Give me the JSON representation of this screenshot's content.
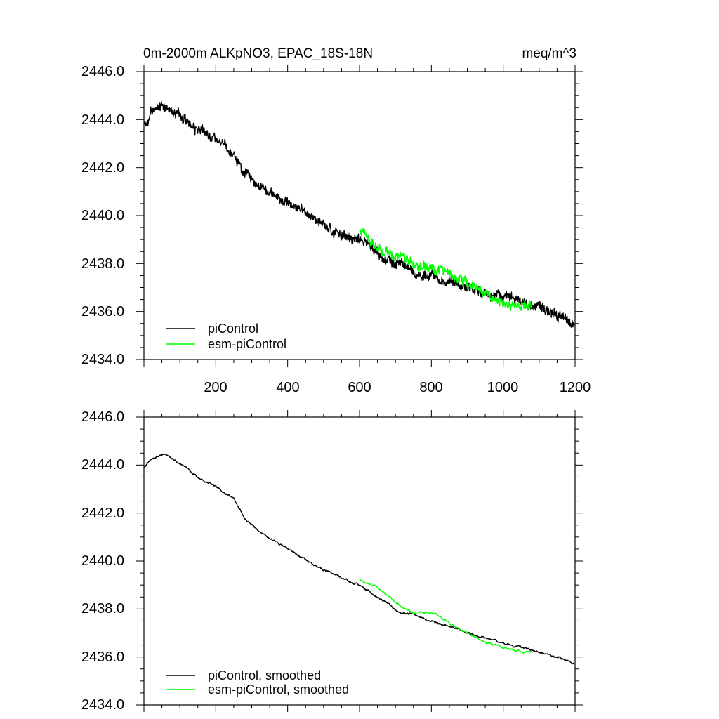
{
  "chart_data": [
    {
      "type": "line",
      "title_left": "0m-2000m ALKpNO3, EPAC_18S-18N",
      "title_right": "meq/m^3",
      "xlim": [
        0,
        1200
      ],
      "ylim": [
        2434.0,
        2446.0
      ],
      "yticks": [
        "2434.0",
        "2436.0",
        "2438.0",
        "2440.0",
        "2442.0",
        "2444.0",
        "2446.0"
      ],
      "xticks": [
        "200",
        "400",
        "600",
        "800",
        "1000",
        "1200"
      ],
      "series": [
        {
          "name": "piControl",
          "color": "#000000",
          "x_range": [
            1,
            1200
          ],
          "anchors_x": [
            1,
            20,
            60,
            80,
            110,
            150,
            200,
            250,
            280,
            320,
            400,
            500,
            600,
            700,
            800,
            900,
            1000,
            1100,
            1200
          ],
          "anchors_y": [
            2443.7,
            2444.3,
            2444.6,
            2444.4,
            2444.1,
            2443.6,
            2443.1,
            2442.6,
            2441.8,
            2441.2,
            2440.5,
            2439.6,
            2439.0,
            2438.0,
            2437.5,
            2437.0,
            2436.6,
            2436.2,
            2435.6
          ],
          "noise": 0.28
        },
        {
          "name": "esm-piControl",
          "color": "#00ff00",
          "x_range": [
            600,
            1080
          ],
          "anchors_x": [
            600,
            650,
            700,
            750,
            800,
            850,
            900,
            950,
            1000,
            1050,
            1080
          ],
          "anchors_y": [
            2439.3,
            2438.7,
            2438.4,
            2437.9,
            2437.9,
            2437.6,
            2437.2,
            2436.7,
            2436.4,
            2436.2,
            2436.3
          ],
          "noise": 0.28
        }
      ]
    },
    {
      "type": "line",
      "xlim": [
        0,
        1200
      ],
      "ylim": [
        2434.0,
        2446.0
      ],
      "yticks": [
        "2434.0",
        "2436.0",
        "2438.0",
        "2440.0",
        "2442.0",
        "2444.0",
        "2446.0"
      ],
      "series": [
        {
          "name": "piControl, smoothed",
          "color": "#000000",
          "x_range": [
            1,
            1200
          ],
          "anchors_x": [
            1,
            20,
            60,
            80,
            110,
            150,
            200,
            250,
            280,
            320,
            400,
            500,
            600,
            700,
            800,
            900,
            1000,
            1100,
            1200
          ],
          "anchors_y": [
            2443.9,
            2444.3,
            2444.5,
            2444.3,
            2444.0,
            2443.5,
            2443.1,
            2442.6,
            2441.8,
            2441.2,
            2440.5,
            2439.6,
            2439.0,
            2438.0,
            2437.5,
            2437.0,
            2436.6,
            2436.2,
            2435.7
          ],
          "noise": 0.1
        },
        {
          "name": "esm-piControl, smoothed",
          "color": "#00ff00",
          "x_range": [
            600,
            1080
          ],
          "anchors_x": [
            600,
            650,
            700,
            750,
            800,
            850,
            900,
            950,
            1000,
            1050,
            1080
          ],
          "anchors_y": [
            2439.2,
            2438.9,
            2438.3,
            2437.8,
            2437.9,
            2437.4,
            2437.0,
            2436.6,
            2436.4,
            2436.2,
            2436.2
          ],
          "noise": 0.1
        }
      ]
    }
  ]
}
